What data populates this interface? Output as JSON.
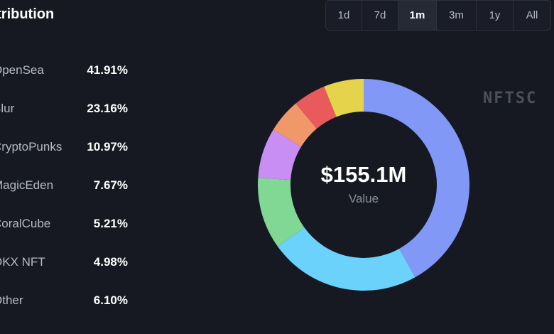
{
  "header": {
    "title": "Distribution"
  },
  "timeframes": {
    "buttons": [
      {
        "label": "1d",
        "active": false
      },
      {
        "label": "7d",
        "active": false
      },
      {
        "label": "1m",
        "active": true
      },
      {
        "label": "3m",
        "active": false
      },
      {
        "label": "1y",
        "active": false
      },
      {
        "label": "All",
        "active": false
      }
    ]
  },
  "chart_data": {
    "type": "pie",
    "variant": "donut",
    "center_value": "$155.1M",
    "center_label": "Value",
    "slices": [
      {
        "name": "OpenSea",
        "label": "41.91%",
        "value": 41.91,
        "color": "#8198f7"
      },
      {
        "name": "Blur",
        "label": "23.16%",
        "value": 23.16,
        "color": "#6bd2fb"
      },
      {
        "name": "CryptoPunks",
        "label": "10.97%",
        "value": 10.97,
        "color": "#80d894"
      },
      {
        "name": "MagicEden",
        "label": "7.67%",
        "value": 7.67,
        "color": "#c88ef4"
      },
      {
        "name": "CoralCube",
        "label": "5.21%",
        "value": 5.21,
        "color": "#f0986a"
      },
      {
        "name": "OKX NFT",
        "label": "4.98%",
        "value": 4.98,
        "color": "#e85a5c"
      },
      {
        "name": "Other",
        "label": "6.10%",
        "value": 6.1,
        "color": "#e6d34c"
      }
    ]
  },
  "watermark": "NFTSC"
}
